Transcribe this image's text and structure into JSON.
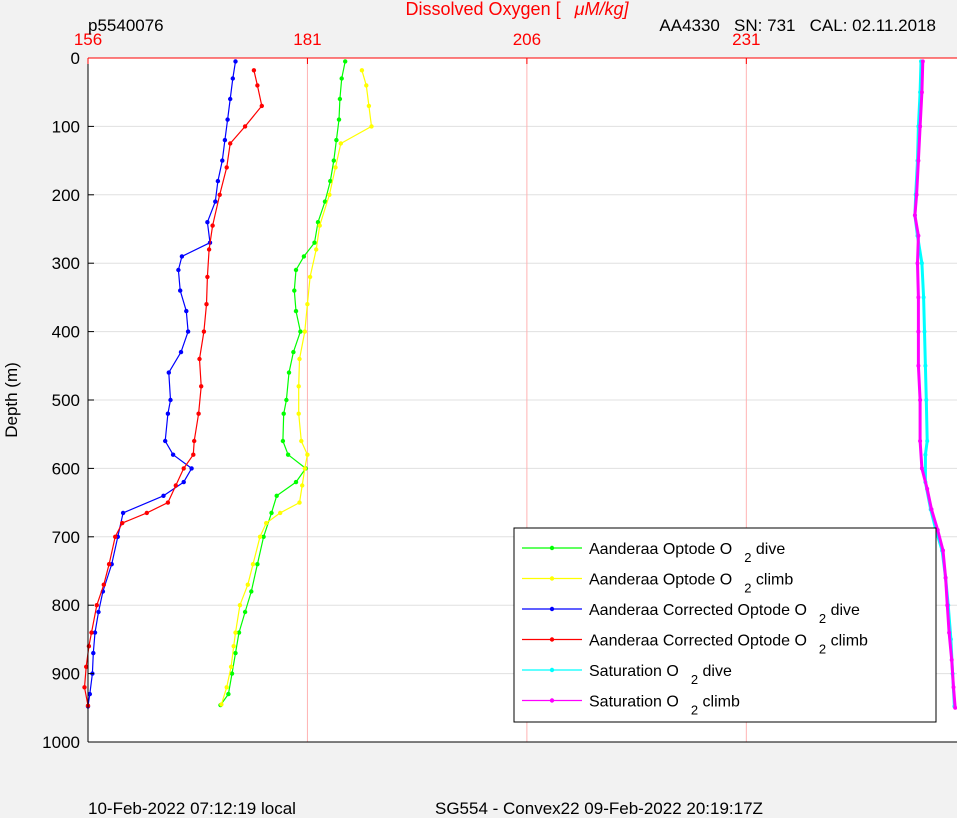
{
  "header": {
    "profile_id": "p5540076",
    "sensor_info": "AA4330   SN: 731   CAL: 02.11.2018"
  },
  "footer": {
    "local_time": "10-Feb-2022 07:12:19 local",
    "mission": "SG554 - Convex22 09-Feb-2022 20:19:17Z"
  },
  "colors": {
    "optode_dive": "#00ff00",
    "optode_climb": "#ffff00",
    "corrected_dive": "#0000ff",
    "corrected_climb": "#ff0000",
    "saturation_dive": "#00ffff",
    "saturation_climb": "#ff00ff",
    "axis_top": "#ff0000",
    "grid_x": "#ffb3b3",
    "grid_y": "#e0e0e0"
  },
  "chart_data": {
    "type": "scatter",
    "title_prefix": "Dissolved Oxygen [",
    "title_unit": "μM/kg]",
    "xlabel": "Dissolved Oxygen [ μM/kg]",
    "ylabel": "Depth (m)",
    "xlim": [
      156,
      255
    ],
    "ylim": [
      0,
      1000
    ],
    "y_reversed": true,
    "x_axis_position": "top",
    "x_ticks": [
      156,
      181,
      206,
      231
    ],
    "y_ticks": [
      0,
      100,
      200,
      300,
      400,
      500,
      600,
      700,
      800,
      900,
      1000
    ],
    "grid": true,
    "legend_position": "bottom-right",
    "series": [
      {
        "name": "Aanderaa Optode O",
        "sub": "2",
        "suffix": "dive",
        "color": "#00ff00",
        "points": [
          [
            185.3,
            5
          ],
          [
            184.9,
            30
          ],
          [
            184.7,
            60
          ],
          [
            184.6,
            90
          ],
          [
            184.3,
            120
          ],
          [
            184.0,
            150
          ],
          [
            183.6,
            180
          ],
          [
            183.0,
            210
          ],
          [
            182.2,
            240
          ],
          [
            181.8,
            270
          ],
          [
            180.6,
            290
          ],
          [
            179.7,
            310
          ],
          [
            179.5,
            340
          ],
          [
            179.7,
            370
          ],
          [
            180.2,
            400
          ],
          [
            179.4,
            430
          ],
          [
            178.9,
            460
          ],
          [
            178.6,
            500
          ],
          [
            178.3,
            520
          ],
          [
            178.2,
            560
          ],
          [
            178.8,
            580
          ],
          [
            180.8,
            600
          ],
          [
            179.7,
            620
          ],
          [
            177.5,
            640
          ],
          [
            176.9,
            665
          ],
          [
            176.0,
            700
          ],
          [
            175.3,
            740
          ],
          [
            174.6,
            780
          ],
          [
            173.9,
            810
          ],
          [
            173.2,
            840
          ],
          [
            172.8,
            870
          ],
          [
            172.4,
            900
          ],
          [
            172.0,
            930
          ],
          [
            171.1,
            946
          ]
        ]
      },
      {
        "name": "Aanderaa Optode O",
        "sub": "2",
        "suffix": "climb",
        "color": "#ffff00",
        "points": [
          [
            171.2,
            945
          ],
          [
            171.8,
            920
          ],
          [
            172.3,
            890
          ],
          [
            172.6,
            860
          ],
          [
            172.8,
            840
          ],
          [
            173.3,
            800
          ],
          [
            174.2,
            770
          ],
          [
            174.8,
            740
          ],
          [
            175.6,
            700
          ],
          [
            176.3,
            680
          ],
          [
            177.9,
            665
          ],
          [
            180.1,
            650
          ],
          [
            180.4,
            625
          ],
          [
            180.7,
            600
          ],
          [
            181.0,
            580
          ],
          [
            180.3,
            560
          ],
          [
            180.0,
            520
          ],
          [
            180.0,
            480
          ],
          [
            180.1,
            440
          ],
          [
            180.7,
            400
          ],
          [
            181.0,
            360
          ],
          [
            181.3,
            320
          ],
          [
            182.0,
            280
          ],
          [
            182.4,
            245
          ],
          [
            183.5,
            200
          ],
          [
            184.2,
            160
          ],
          [
            184.8,
            125
          ],
          [
            188.3,
            100
          ],
          [
            188.0,
            70
          ],
          [
            187.7,
            40
          ],
          [
            187.2,
            18
          ]
        ]
      },
      {
        "name": "Aanderaa Corrected Optode O",
        "sub": "2",
        "suffix": "dive",
        "color": "#0000ff",
        "points": [
          [
            172.8,
            5
          ],
          [
            172.5,
            30
          ],
          [
            172.2,
            60
          ],
          [
            171.9,
            90
          ],
          [
            171.6,
            120
          ],
          [
            171.3,
            150
          ],
          [
            170.8,
            180
          ],
          [
            170.5,
            210
          ],
          [
            169.6,
            240
          ],
          [
            169.9,
            270
          ],
          [
            166.7,
            290
          ],
          [
            166.3,
            310
          ],
          [
            166.5,
            340
          ],
          [
            167.2,
            370
          ],
          [
            167.4,
            400
          ],
          [
            166.6,
            430
          ],
          [
            165.2,
            460
          ],
          [
            165.4,
            500
          ],
          [
            165.1,
            520
          ],
          [
            164.8,
            560
          ],
          [
            165.7,
            580
          ],
          [
            167.8,
            600
          ],
          [
            166.9,
            620
          ],
          [
            164.6,
            640
          ],
          [
            160.0,
            665
          ],
          [
            159.4,
            700
          ],
          [
            158.7,
            740
          ],
          [
            157.7,
            780
          ],
          [
            157.2,
            810
          ],
          [
            156.8,
            840
          ],
          [
            156.6,
            870
          ],
          [
            156.5,
            900
          ],
          [
            156.2,
            930
          ],
          [
            156.0,
            948
          ]
        ]
      },
      {
        "name": "Aanderaa Corrected Optode O",
        "sub": "2",
        "suffix": "climb",
        "color": "#ff0000",
        "points": [
          [
            156.0,
            947
          ],
          [
            155.6,
            920
          ],
          [
            155.8,
            890
          ],
          [
            156.1,
            860
          ],
          [
            156.4,
            840
          ],
          [
            157.0,
            800
          ],
          [
            157.8,
            770
          ],
          [
            158.4,
            740
          ],
          [
            159.1,
            700
          ],
          [
            159.9,
            680
          ],
          [
            162.7,
            665
          ],
          [
            165.1,
            650
          ],
          [
            166.0,
            625
          ],
          [
            166.9,
            600
          ],
          [
            168.0,
            580
          ],
          [
            168.1,
            560
          ],
          [
            168.6,
            520
          ],
          [
            168.9,
            480
          ],
          [
            168.7,
            440
          ],
          [
            169.2,
            400
          ],
          [
            169.5,
            360
          ],
          [
            169.6,
            320
          ],
          [
            169.8,
            280
          ],
          [
            170.2,
            245
          ],
          [
            171.0,
            200
          ],
          [
            171.8,
            160
          ],
          [
            172.2,
            125
          ],
          [
            173.9,
            100
          ],
          [
            175.8,
            70
          ],
          [
            175.3,
            40
          ],
          [
            174.9,
            18
          ]
        ]
      },
      {
        "name": "Saturation O",
        "sub": "2",
        "suffix": "dive",
        "color": "#00ffff",
        "points": [
          [
            250.9,
            5
          ],
          [
            250.8,
            50
          ],
          [
            250.6,
            100
          ],
          [
            250.5,
            150
          ],
          [
            250.3,
            200
          ],
          [
            250.2,
            230
          ],
          [
            250.5,
            260
          ],
          [
            251.0,
            300
          ],
          [
            251.2,
            350
          ],
          [
            251.3,
            400
          ],
          [
            251.4,
            450
          ],
          [
            251.5,
            500
          ],
          [
            251.6,
            560
          ],
          [
            251.4,
            580
          ],
          [
            251.4,
            620
          ],
          [
            252.0,
            660
          ],
          [
            252.6,
            690
          ],
          [
            253.3,
            720
          ],
          [
            253.7,
            760
          ],
          [
            254.0,
            800
          ],
          [
            254.3,
            850
          ],
          [
            254.5,
            900
          ],
          [
            254.7,
            948
          ]
        ]
      },
      {
        "name": "Saturation O",
        "sub": "2",
        "suffix": "climb",
        "color": "#ff00ff",
        "points": [
          [
            254.8,
            950
          ],
          [
            254.6,
            920
          ],
          [
            254.4,
            880
          ],
          [
            254.1,
            840
          ],
          [
            253.9,
            800
          ],
          [
            253.7,
            760
          ],
          [
            253.4,
            720
          ],
          [
            252.8,
            690
          ],
          [
            252.1,
            660
          ],
          [
            251.6,
            630
          ],
          [
            251.0,
            600
          ],
          [
            250.8,
            560
          ],
          [
            250.8,
            500
          ],
          [
            250.6,
            450
          ],
          [
            250.6,
            400
          ],
          [
            250.6,
            350
          ],
          [
            250.5,
            300
          ],
          [
            250.6,
            260
          ],
          [
            250.2,
            230
          ],
          [
            250.4,
            200
          ],
          [
            250.6,
            150
          ],
          [
            250.8,
            100
          ],
          [
            251.0,
            50
          ],
          [
            251.1,
            5
          ]
        ]
      }
    ]
  }
}
